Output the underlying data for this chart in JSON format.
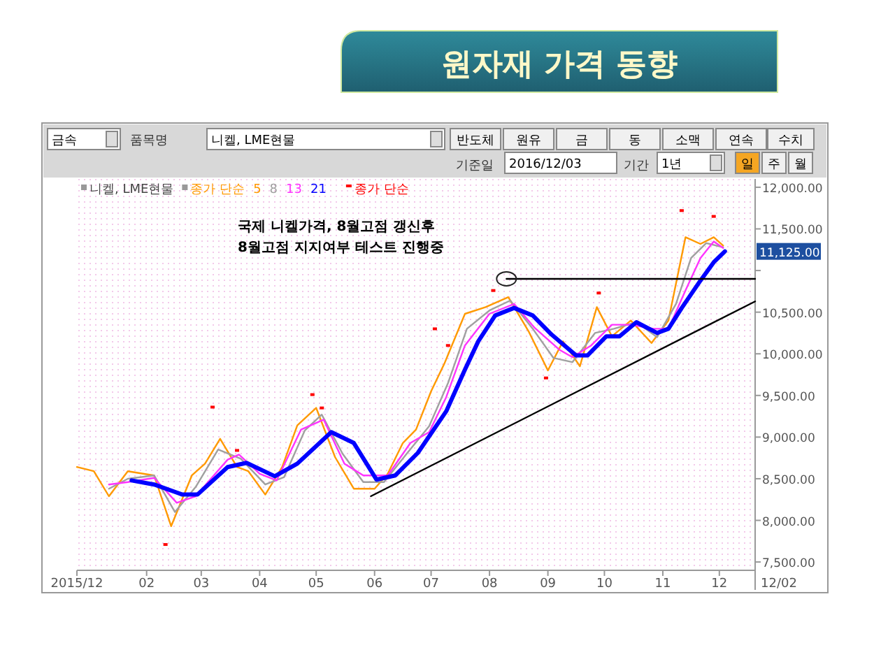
{
  "chart_data": {
    "type": "line",
    "title": "원자재 가격 동향",
    "legend_title": "종가 단순",
    "legend": "top left",
    "grid": false,
    "line_style": "solid",
    "xlim": [
      "2015-12-26",
      "2016-12-20"
    ],
    "xticks": [
      {
        "value": "2015-12-26",
        "label": "2015/12"
      },
      {
        "value": "2016-02-01",
        "label": "02"
      },
      {
        "value": "2016-03-01",
        "label": "03"
      },
      {
        "value": "2016-04-01",
        "label": "04"
      },
      {
        "value": "2016-05-01",
        "label": "05"
      },
      {
        "value": "2016-06-01",
        "label": "06"
      },
      {
        "value": "2016-07-01",
        "label": "07"
      },
      {
        "value": "2016-08-01",
        "label": "08"
      },
      {
        "value": "2016-09-01",
        "label": "09"
      },
      {
        "value": "2016-10-01",
        "label": "10"
      },
      {
        "value": "2016-11-01",
        "label": "11"
      },
      {
        "value": "2016-12-01",
        "label": "12"
      }
    ],
    "ylim": [
      7400,
      12100
    ],
    "yticks": [
      {
        "value": 7500,
        "label": "7,500.00"
      },
      {
        "value": 8000,
        "label": "8,000.00"
      },
      {
        "value": 8500,
        "label": "8,500.00"
      },
      {
        "value": 9000,
        "label": "9,000.00"
      },
      {
        "value": 9500,
        "label": "9,500.00"
      },
      {
        "value": 10000,
        "label": "10,000.00"
      },
      {
        "value": 10500,
        "label": "10,500.00"
      },
      {
        "value": 11000,
        "label": null
      },
      {
        "value": 11500,
        "label": "11,500.00"
      },
      {
        "value": 12000,
        "label": "12,000.00"
      }
    ],
    "series": [
      {
        "name": "5",
        "color": "#ff9900",
        "x": [
          "2015-12-26",
          "2016-01-04",
          "2016-01-12",
          "2016-01-22",
          "2016-02-05",
          "2016-02-14",
          "2016-02-25",
          "2016-03-03",
          "2016-03-11",
          "2016-03-20",
          "2016-03-26",
          "2016-04-04",
          "2016-04-13",
          "2016-04-21",
          "2016-05-01",
          "2016-05-11",
          "2016-05-21",
          "2016-06-01",
          "2016-06-08",
          "2016-06-16",
          "2016-06-23",
          "2016-07-01",
          "2016-07-08",
          "2016-07-19",
          "2016-07-30",
          "2016-08-11",
          "2016-08-22",
          "2016-09-01",
          "2016-09-09",
          "2016-09-18",
          "2016-09-27",
          "2016-10-05",
          "2016-10-15",
          "2016-10-26",
          "2016-11-04",
          "2016-11-13",
          "2016-11-21",
          "2016-11-28",
          "2016-12-03"
        ],
        "values": [
          8640,
          8590,
          8290,
          8590,
          8540,
          7930,
          8540,
          8680,
          8980,
          8640,
          8590,
          8310,
          8640,
          9140,
          9350,
          8760,
          8380,
          8380,
          8560,
          8930,
          9090,
          9550,
          9880,
          10480,
          10560,
          10680,
          10260,
          9800,
          10150,
          9850,
          10560,
          10210,
          10400,
          10130,
          10400,
          11400,
          11320,
          11400,
          11300
        ]
      },
      {
        "name": "8",
        "color": "#a0a0a0",
        "x": [
          "2016-01-12",
          "2016-01-22",
          "2016-02-05",
          "2016-02-16",
          "2016-02-27",
          "2016-03-10",
          "2016-03-22",
          "2016-04-04",
          "2016-04-14",
          "2016-04-25",
          "2016-05-04",
          "2016-05-15",
          "2016-05-26",
          "2016-06-06",
          "2016-06-18",
          "2016-06-30",
          "2016-07-10",
          "2016-07-20",
          "2016-08-01",
          "2016-08-12",
          "2016-08-24",
          "2016-09-04",
          "2016-09-14",
          "2016-09-26",
          "2016-10-06",
          "2016-10-18",
          "2016-10-29",
          "2016-11-08",
          "2016-11-16",
          "2016-11-24",
          "2016-12-03"
        ],
        "values": [
          8380,
          8500,
          8540,
          8100,
          8400,
          8850,
          8740,
          8430,
          8520,
          9080,
          9270,
          8800,
          8460,
          8460,
          8800,
          9130,
          9650,
          10300,
          10520,
          10640,
          10300,
          9950,
          9900,
          10250,
          10300,
          10380,
          10200,
          10600,
          11150,
          11330,
          11280
        ]
      },
      {
        "name": "13",
        "color": "#ff33ff",
        "x": [
          "2016-01-12",
          "2016-01-22",
          "2016-02-05",
          "2016-02-17",
          "2016-02-27",
          "2016-03-15",
          "2016-03-21",
          "2016-04-01",
          "2016-04-10",
          "2016-04-23",
          "2016-05-05",
          "2016-05-16",
          "2016-05-26",
          "2016-06-08",
          "2016-06-20",
          "2016-06-30",
          "2016-07-09",
          "2016-07-19",
          "2016-08-01",
          "2016-08-14",
          "2016-08-25",
          "2016-09-07",
          "2016-09-14",
          "2016-09-24",
          "2016-10-05",
          "2016-10-15",
          "2016-10-27",
          "2016-11-04",
          "2016-11-13",
          "2016-11-21",
          "2016-11-28",
          "2016-12-03"
        ],
        "values": [
          8430,
          8460,
          8510,
          8210,
          8290,
          8730,
          8790,
          8560,
          8480,
          9090,
          9210,
          8680,
          8540,
          8540,
          8930,
          9060,
          9480,
          10100,
          10480,
          10600,
          10310,
          10050,
          9960,
          10100,
          10350,
          10350,
          10300,
          10300,
          10760,
          11150,
          11350,
          11270
        ]
      },
      {
        "name": "21",
        "color": "#0000ff",
        "x": [
          "2016-01-24",
          "2016-02-05",
          "2016-02-20",
          "2016-02-28",
          "2016-03-15",
          "2016-03-25",
          "2016-04-09",
          "2016-04-21",
          "2016-05-09",
          "2016-05-21",
          "2016-06-02",
          "2016-06-12",
          "2016-06-24",
          "2016-07-09",
          "2016-07-19",
          "2016-07-26",
          "2016-08-04",
          "2016-08-14",
          "2016-08-24",
          "2016-09-03",
          "2016-09-16",
          "2016-09-22",
          "2016-10-02",
          "2016-10-09",
          "2016-10-18",
          "2016-10-29",
          "2016-11-04",
          "2016-11-11",
          "2016-11-21",
          "2016-11-28",
          "2016-12-04"
        ],
        "values": [
          8480,
          8430,
          8310,
          8310,
          8640,
          8690,
          8530,
          8680,
          9060,
          8930,
          8490,
          8540,
          8810,
          9310,
          9810,
          10150,
          10460,
          10550,
          10460,
          10230,
          9980,
          9980,
          10210,
          10210,
          10380,
          10250,
          10300,
          10550,
          10880,
          11100,
          11230
        ]
      },
      {
        "name": "종가 단순",
        "type": "scatter",
        "color": "#ff0000",
        "x": [
          "2016-02-11",
          "2016-03-07",
          "2016-03-20",
          "2016-04-29",
          "2016-05-04",
          "2016-07-03",
          "2016-07-10",
          "2016-08-03",
          "2016-08-31",
          "2016-09-28",
          "2016-11-11",
          "2016-11-28"
        ],
        "values": [
          7710,
          9360,
          8840,
          9510,
          9350,
          10300,
          10100,
          10760,
          9710,
          10730,
          11720,
          11650
        ]
      },
      {
        "type": "line",
        "color": "#000000",
        "x": [
          "2016-05-30",
          "2016-12-20"
        ],
        "values": [
          8290,
          10630
        ]
      },
      {
        "type": "line",
        "color": "#000000",
        "x": [
          "2016-08-10",
          "2016-12-20"
        ],
        "values": [
          10900,
          10900
        ]
      }
    ],
    "annotations": [
      "국제 니켈가격, 8월고점 갱신후",
      "8월고점 지지여부 테스트 진행중",
      "니켈, LME현물",
      "금속",
      "품목명",
      "니켈, LME현물",
      "반도체",
      "원유",
      "금",
      "동",
      "소맥",
      "연속",
      "수치",
      "기준일",
      "2016/12/03",
      "기간",
      "1년",
      "일",
      "주",
      "월",
      "12/02",
      "11,125.00"
    ]
  }
}
